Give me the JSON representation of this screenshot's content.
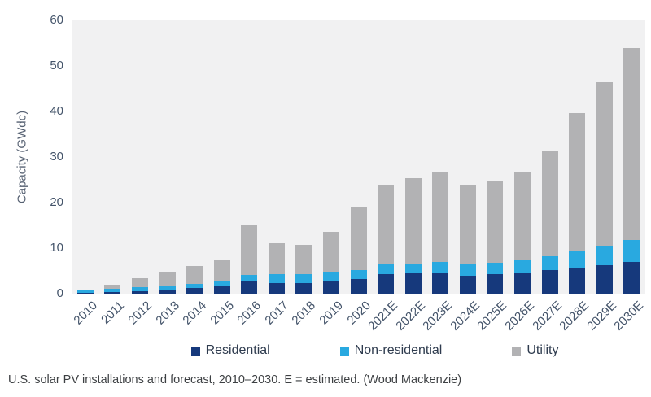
{
  "caption": "U.S. solar PV installations and forecast, 2010–2030. E = estimated. (Wood Mackenzie)",
  "colors": {
    "residential": "#16397c",
    "non_residential": "#29a9e0",
    "utility": "#b2b2b4",
    "plot_background": "#f1f1f2",
    "tick_text": "#44546a"
  },
  "chart_data": {
    "type": "bar",
    "stacked": true,
    "title": "",
    "ylabel": "Capacity (GWdc)",
    "xlabel": "",
    "ylim": [
      0,
      60
    ],
    "yticks": [
      0,
      10,
      20,
      30,
      40,
      50,
      60
    ],
    "grid": false,
    "legend_position": "bottom",
    "categories": [
      "2010",
      "2011",
      "2012",
      "2013",
      "2014",
      "2015",
      "2016",
      "2017",
      "2018",
      "2019",
      "2020",
      "2021E",
      "2022E",
      "2023E",
      "2024E",
      "2025E",
      "2026E",
      "2027E",
      "2028E",
      "2029E",
      "2030E"
    ],
    "series": [
      {
        "name": "Residential",
        "color": "#16397c",
        "values": [
          0.25,
          0.3,
          0.5,
          0.8,
          1.2,
          1.6,
          2.6,
          2.4,
          2.4,
          2.8,
          3.2,
          4.3,
          4.4,
          4.5,
          4.0,
          4.2,
          4.6,
          5.1,
          5.7,
          6.3,
          7.0
        ]
      },
      {
        "name": "Non-residential",
        "color": "#29a9e0",
        "values": [
          0.4,
          0.8,
          1.0,
          1.0,
          1.0,
          1.1,
          1.6,
          1.8,
          1.8,
          2.0,
          2.0,
          2.1,
          2.3,
          2.5,
          2.4,
          2.5,
          2.9,
          3.1,
          3.7,
          4.1,
          4.8
        ]
      },
      {
        "name": "Utility",
        "color": "#b2b2b4",
        "values": [
          0.2,
          0.8,
          1.9,
          3.0,
          3.9,
          4.6,
          10.8,
          6.9,
          6.5,
          8.7,
          14.0,
          17.3,
          18.7,
          19.6,
          17.6,
          18.0,
          19.3,
          23.3,
          30.3,
          36.1,
          42.2
        ]
      }
    ]
  }
}
